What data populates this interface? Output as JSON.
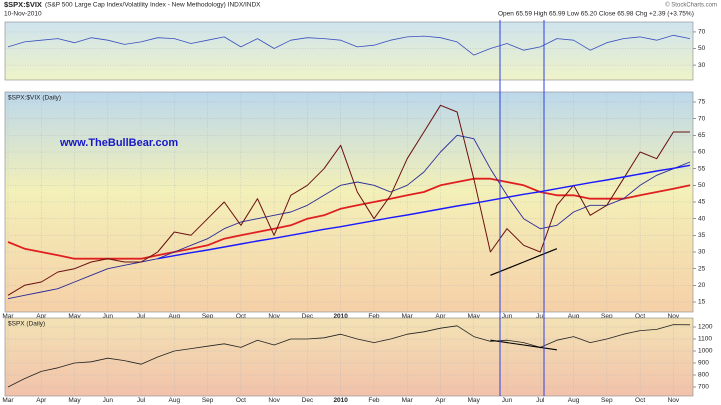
{
  "header": {
    "symbol": "$SPX:$VIX",
    "description": "(S&P 500 Large Cap Index/Volatility Index - New Methodology) INDX/INDX",
    "date": "10-Nov-2010",
    "quote": "Open 65.59  High 65.99  Low 65.20  Close 65.98  Chg +2.39 (+3.75%)",
    "credit": "© StockCharts.com"
  },
  "chart_data": [
    {
      "type": "line",
      "ylim": [
        12,
        82
      ],
      "yticks": [
        70,
        50,
        30
      ],
      "grid": true,
      "series": [
        {
          "color": "#3a4fc0",
          "line_width": 0.8,
          "values": [
            52,
            58,
            60,
            62,
            57,
            63,
            60,
            55,
            58,
            63,
            62,
            56,
            60,
            64,
            52,
            62,
            50,
            60,
            63,
            62,
            60,
            52,
            54,
            60,
            64,
            65,
            63,
            58,
            42,
            50,
            56,
            48,
            52,
            62,
            60,
            48,
            57,
            62,
            64,
            60,
            66,
            62
          ]
        }
      ]
    },
    {
      "type": "line",
      "title": "$SPX:$VIX (Daily)",
      "annotation": "www.TheBullBear.com",
      "ylim": [
        12,
        78
      ],
      "yticks": [
        15,
        20,
        25,
        30,
        35,
        40,
        45,
        50,
        55,
        60,
        65,
        70,
        75
      ],
      "grid": true,
      "categories": [
        "Mar",
        null,
        "Apr",
        null,
        "May",
        null,
        "Jun",
        null,
        "Jul",
        null,
        "Aug",
        null,
        "Sep",
        null,
        "Oct",
        null,
        "Nov",
        null,
        "Dec",
        null,
        "2010",
        null,
        "Feb",
        null,
        "Mar",
        null,
        "Apr",
        null,
        "May",
        null,
        "Jun",
        null,
        "Jul",
        null,
        "Aug",
        null,
        "Sep",
        null,
        "Oct",
        null,
        "Nov",
        null
      ],
      "series": [
        {
          "color": "#e02020",
          "line_width": 1.8,
          "values": [
            33,
            31,
            30,
            29,
            28,
            28,
            28,
            28,
            28,
            29,
            30,
            31,
            32,
            34,
            35,
            36,
            37,
            38,
            40,
            41,
            43,
            44,
            45,
            46,
            47,
            48,
            50,
            51,
            52,
            52,
            51,
            50,
            48,
            47,
            47,
            46,
            46,
            46,
            47,
            48,
            49,
            50
          ]
        },
        {
          "color": "#2a2a9a",
          "line_width": 0.9,
          "values": [
            16,
            17,
            18,
            19,
            21,
            23,
            25,
            26,
            27,
            28,
            30,
            32,
            34,
            37,
            39,
            40,
            41,
            42,
            44,
            47,
            50,
            51,
            50,
            48,
            50,
            54,
            60,
            65,
            64,
            55,
            47,
            40,
            37,
            38,
            42,
            44,
            44,
            46,
            50,
            53,
            55,
            57
          ]
        },
        {
          "color": "#6a1010",
          "line_width": 1,
          "values": [
            17,
            20,
            21,
            24,
            25,
            27,
            28,
            27,
            27,
            30,
            36,
            35,
            40,
            45,
            38,
            46,
            35,
            47,
            50,
            55,
            62,
            48,
            40,
            47,
            58,
            66,
            74,
            72,
            52,
            30,
            37,
            32,
            30,
            44,
            50,
            41,
            44,
            52,
            60,
            58,
            66,
            66
          ]
        },
        {
          "color": "#1a1aff",
          "line_width": 1.4,
          "values": [
            null,
            null,
            null,
            null,
            null,
            null,
            null,
            null,
            null,
            28.0,
            28.9,
            29.8,
            30.6,
            31.5,
            32.4,
            33.3,
            34.1,
            35.0,
            35.9,
            36.8,
            37.6,
            38.5,
            39.4,
            40.3,
            41.1,
            42.0,
            42.9,
            43.8,
            44.6,
            45.5,
            46.4,
            47.3,
            48.1,
            49.0,
            49.9,
            50.8,
            51.6,
            52.5,
            53.4,
            54.3,
            55.1,
            56.0
          ]
        },
        {
          "color": "#000000",
          "line_width": 1.2,
          "values": [
            null,
            null,
            null,
            null,
            null,
            null,
            null,
            null,
            null,
            null,
            null,
            null,
            null,
            null,
            null,
            null,
            null,
            null,
            null,
            null,
            null,
            null,
            null,
            null,
            null,
            null,
            null,
            null,
            null,
            23,
            25,
            27,
            29,
            31,
            null,
            null,
            null,
            null,
            null,
            null,
            null,
            null
          ]
        }
      ]
    },
    {
      "type": "line",
      "title": "$SPX (Daily)",
      "ylim": [
        625,
        1275
      ],
      "yticks": [
        700,
        800,
        900,
        1000,
        1100,
        1200
      ],
      "grid": true,
      "categories": [
        "Mar",
        null,
        "Apr",
        null,
        "May",
        null,
        "Jun",
        null,
        "Jul",
        null,
        "Aug",
        null,
        "Sep",
        null,
        "Oct",
        null,
        "Nov",
        null,
        "Dec",
        null,
        "2010",
        null,
        "Feb",
        null,
        "Mar",
        null,
        "Apr",
        null,
        "May",
        null,
        "Jun",
        null,
        "Jul",
        null,
        "Aug",
        null,
        "Sep",
        null,
        "Oct",
        null,
        "Nov",
        null
      ],
      "series": [
        {
          "color": "#222222",
          "line_width": 0.8,
          "values": [
            700,
            770,
            830,
            860,
            900,
            910,
            940,
            920,
            890,
            950,
            1000,
            1020,
            1040,
            1060,
            1030,
            1090,
            1050,
            1100,
            1100,
            1110,
            1140,
            1100,
            1070,
            1100,
            1140,
            1160,
            1190,
            1210,
            1120,
            1080,
            1090,
            1070,
            1030,
            1090,
            1120,
            1070,
            1100,
            1140,
            1170,
            1180,
            1220,
            1218
          ]
        },
        {
          "color": "#000000",
          "line_width": 1.1,
          "values": [
            null,
            null,
            null,
            null,
            null,
            null,
            null,
            null,
            null,
            null,
            null,
            null,
            null,
            null,
            null,
            null,
            null,
            null,
            null,
            null,
            null,
            null,
            null,
            null,
            null,
            null,
            null,
            null,
            null,
            1090,
            1070,
            1050,
            1030,
            1010,
            null,
            null,
            null,
            null,
            null,
            null,
            null,
            null
          ]
        }
      ]
    }
  ]
}
